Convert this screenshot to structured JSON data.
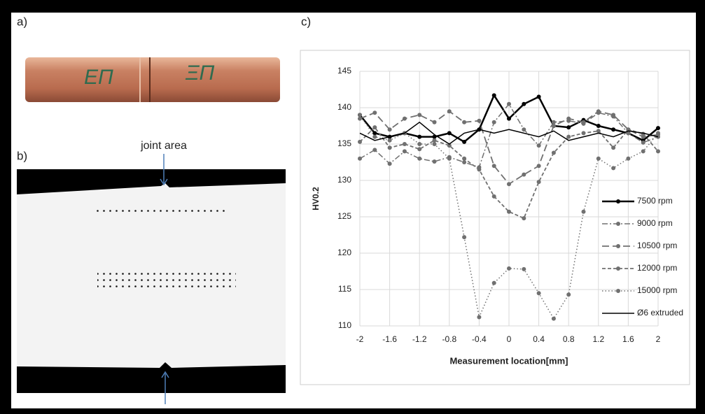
{
  "panels": {
    "a": "a)",
    "b": "b)",
    "c": "c)",
    "joint": "joint area"
  },
  "chart_data": {
    "type": "line",
    "y_label": "HV0.2",
    "x_label": "Measurement location[mm]",
    "x": [
      -2,
      -1.8,
      -1.6,
      -1.4,
      -1.2,
      -1,
      -0.8,
      -0.6,
      -0.4,
      -0.2,
      0,
      0.2,
      0.4,
      0.6,
      0.8,
      1,
      1.2,
      1.4,
      1.6,
      1.8,
      2
    ],
    "xlim": [
      -2,
      2
    ],
    "xticks": [
      -2,
      -1.6,
      -1.2,
      -0.8,
      -0.4,
      0,
      0.4,
      0.8,
      1.2,
      1.6,
      2
    ],
    "ylim": [
      110,
      145
    ],
    "yticks": [
      110,
      115,
      120,
      125,
      130,
      135,
      140,
      145
    ],
    "grid": true,
    "legend": "right",
    "series": [
      {
        "name": "7500 rpm",
        "color": "#000000",
        "dash": "solid",
        "width": 2.5,
        "marker": true,
        "values": [
          139,
          136.5,
          136,
          136.5,
          136,
          136,
          136.5,
          135.3,
          137,
          141.7,
          138.5,
          140.5,
          141.5,
          137.5,
          137.3,
          138.3,
          137.5,
          137,
          136.5,
          135.5,
          137.2
        ]
      },
      {
        "name": "9000 rpm",
        "color": "#707070",
        "dash": "dashdot",
        "width": 1.5,
        "marker": true,
        "values": [
          133,
          134.2,
          132.3,
          134,
          133,
          132.6,
          133.2,
          132.5,
          131.8,
          138,
          140.5,
          137,
          134.8,
          138,
          138.2,
          137.8,
          139.3,
          138.8,
          136.5,
          135.2,
          136
        ]
      },
      {
        "name": "10500 rpm",
        "color": "#707070",
        "dash": "longdash",
        "width": 1.8,
        "marker": true,
        "values": [
          138.5,
          139.3,
          137,
          138.5,
          139,
          138,
          139.5,
          138,
          138.2,
          132,
          129.5,
          130.8,
          132,
          137.5,
          138.5,
          138,
          139.5,
          139,
          137,
          136,
          136.3
        ]
      },
      {
        "name": "12000 rpm",
        "color": "#707070",
        "dash": "dash",
        "width": 1.8,
        "marker": true,
        "values": [
          135.3,
          137.3,
          134.5,
          135,
          134.3,
          135.5,
          134.8,
          133,
          131.5,
          127.8,
          125.7,
          124.8,
          129.8,
          133.8,
          136,
          136.5,
          136.8,
          134.5,
          137,
          136.4,
          134
        ]
      },
      {
        "name": "15000 rpm",
        "color": "#707070",
        "dash": "dot",
        "width": 1.5,
        "marker": true,
        "values": [
          139,
          136,
          135.5,
          136.5,
          135,
          135,
          133,
          122.2,
          111.2,
          115.9,
          117.9,
          117.8,
          114.5,
          111,
          114.3,
          125.7,
          133,
          131.7,
          133,
          134,
          136.5
        ]
      },
      {
        "name": "Ø6 extruded",
        "color": "#000000",
        "dash": "solid",
        "width": 1.5,
        "marker": false,
        "values": [
          136.5,
          135.5,
          136,
          136.5,
          138,
          136.3,
          135,
          136.5,
          137,
          136.5,
          137,
          136.5,
          136,
          136.8,
          135.5,
          136,
          136.5,
          136,
          136.8,
          136.5,
          136
        ]
      }
    ]
  }
}
